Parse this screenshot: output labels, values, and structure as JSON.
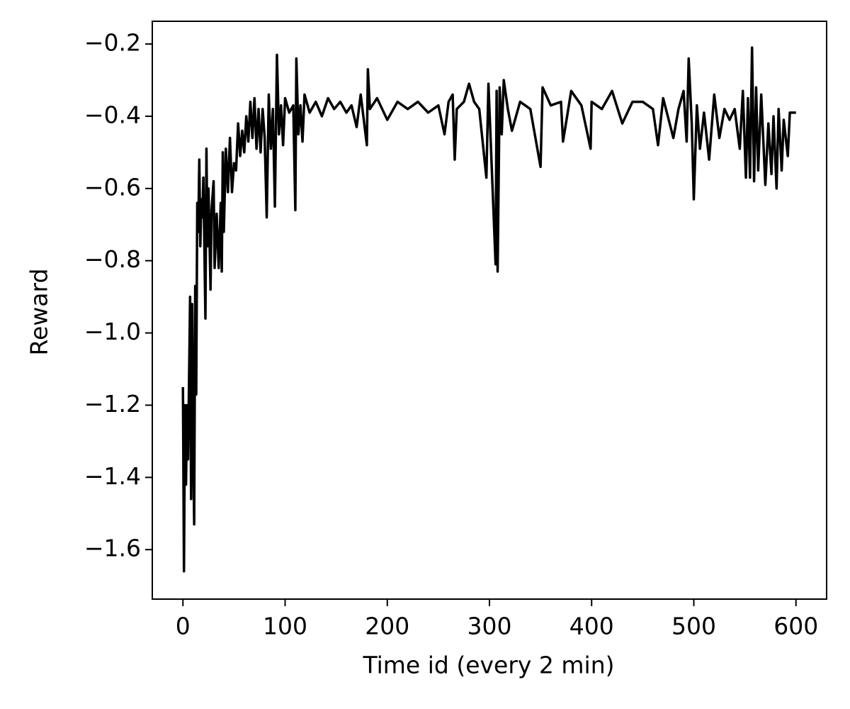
{
  "chart_data": {
    "type": "line",
    "x_label": "Time id (every 2 min)",
    "y_label": "Reward",
    "color": "#000000",
    "xlim": [
      -30,
      630
    ],
    "ylim": [
      -1.737,
      -0.137
    ],
    "xticks": [
      0,
      100,
      200,
      300,
      400,
      500,
      600
    ],
    "yticks": [
      {
        "value": -1.6,
        "label": "−1.6"
      },
      {
        "value": -1.4,
        "label": "−1.4"
      },
      {
        "value": -1.2,
        "label": "−1.2"
      },
      {
        "value": -1.0,
        "label": "−1.0"
      },
      {
        "value": -0.8,
        "label": "−0.8"
      },
      {
        "value": -0.6,
        "label": "−0.6"
      },
      {
        "value": -0.4,
        "label": "−0.4"
      },
      {
        "value": -0.2,
        "label": "−0.2"
      }
    ],
    "grid": false,
    "x": [
      0,
      1,
      2,
      3,
      4,
      5,
      7,
      8,
      9,
      10,
      11,
      12,
      13,
      14,
      15,
      16,
      17,
      18,
      19,
      20,
      22,
      23,
      24,
      25,
      27,
      28,
      30,
      31,
      33,
      35,
      37,
      38,
      39,
      40,
      42,
      44,
      46,
      48,
      50,
      52,
      54,
      56,
      58,
      60,
      62,
      64,
      66,
      68,
      70,
      72,
      74,
      76,
      78,
      80,
      82,
      84,
      86,
      88,
      90,
      92,
      94,
      96,
      98,
      100,
      104,
      108,
      110,
      111,
      113,
      115,
      117,
      119,
      124,
      130,
      136,
      142,
      148,
      154,
      160,
      165,
      170,
      174,
      180,
      181,
      183,
      190,
      200,
      210,
      220,
      230,
      240,
      250,
      256,
      260,
      264,
      266,
      268,
      275,
      280,
      285,
      290,
      297,
      299,
      306,
      307,
      308,
      310,
      312,
      314,
      318,
      322,
      330,
      340,
      350,
      352,
      360,
      370,
      372,
      380,
      390,
      399,
      400,
      410,
      420,
      430,
      440,
      450,
      460,
      465,
      470,
      480,
      485,
      490,
      493,
      495,
      498,
      500,
      503,
      506,
      510,
      515,
      520,
      525,
      530,
      535,
      540,
      545,
      548,
      551,
      553,
      555,
      557,
      559,
      561,
      563,
      566,
      570,
      573,
      576,
      578,
      581,
      583,
      586,
      588,
      592,
      594,
      598,
      600
    ],
    "values": [
      -1.15,
      -1.66,
      -1.2,
      -1.42,
      -1.2,
      -1.35,
      -0.9,
      -1.46,
      -0.92,
      -1.3,
      -1.53,
      -0.87,
      -1.17,
      -0.64,
      -0.72,
      -0.52,
      -0.76,
      -0.63,
      -0.68,
      -0.57,
      -0.96,
      -0.49,
      -0.76,
      -0.6,
      -0.88,
      -0.66,
      -0.58,
      -0.82,
      -0.67,
      -0.82,
      -0.64,
      -0.83,
      -0.5,
      -0.72,
      -0.49,
      -0.61,
      -0.46,
      -0.61,
      -0.53,
      -0.55,
      -0.42,
      -0.51,
      -0.44,
      -0.5,
      -0.4,
      -0.47,
      -0.36,
      -0.46,
      -0.35,
      -0.49,
      -0.38,
      -0.5,
      -0.38,
      -0.46,
      -0.68,
      -0.34,
      -0.49,
      -0.38,
      -0.65,
      -0.23,
      -0.45,
      -0.37,
      -0.48,
      -0.35,
      -0.39,
      -0.37,
      -0.66,
      -0.24,
      -0.45,
      -0.37,
      -0.47,
      -0.34,
      -0.39,
      -0.36,
      -0.4,
      -0.35,
      -0.38,
      -0.36,
      -0.39,
      -0.37,
      -0.43,
      -0.34,
      -0.48,
      -0.27,
      -0.38,
      -0.35,
      -0.41,
      -0.36,
      -0.38,
      -0.36,
      -0.39,
      -0.37,
      -0.45,
      -0.36,
      -0.34,
      -0.52,
      -0.38,
      -0.36,
      -0.31,
      -0.36,
      -0.38,
      -0.57,
      -0.31,
      -0.81,
      -0.33,
      -0.83,
      -0.32,
      -0.45,
      -0.3,
      -0.38,
      -0.44,
      -0.36,
      -0.38,
      -0.54,
      -0.32,
      -0.37,
      -0.36,
      -0.47,
      -0.33,
      -0.37,
      -0.49,
      -0.36,
      -0.38,
      -0.33,
      -0.42,
      -0.36,
      -0.36,
      -0.38,
      -0.48,
      -0.35,
      -0.46,
      -0.38,
      -0.33,
      -0.47,
      -0.24,
      -0.42,
      -0.63,
      -0.37,
      -0.49,
      -0.39,
      -0.52,
      -0.34,
      -0.46,
      -0.38,
      -0.41,
      -0.38,
      -0.49,
      -0.33,
      -0.57,
      -0.35,
      -0.57,
      -0.21,
      -0.58,
      -0.32,
      -0.55,
      -0.34,
      -0.59,
      -0.42,
      -0.56,
      -0.4,
      -0.6,
      -0.38,
      -0.55,
      -0.41,
      -0.51,
      -0.39,
      -0.39,
      -0.39
    ]
  }
}
